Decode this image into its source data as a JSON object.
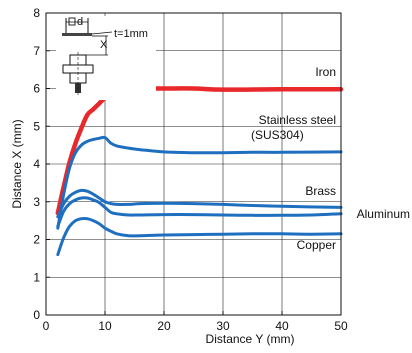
{
  "chart_data": {
    "type": "line",
    "xlabel": "Distance Y (mm)",
    "ylabel": "Distance X (mm)",
    "xlim": [
      0,
      50
    ],
    "ylim": [
      0,
      8
    ],
    "x_ticks": [
      0,
      10,
      20,
      30,
      40,
      50
    ],
    "y_ticks": [
      0,
      1,
      2,
      3,
      4,
      5,
      6,
      7,
      8
    ],
    "grid": true,
    "inset_labels": {
      "d": "d",
      "x": "X",
      "t": "t=1mm"
    },
    "series": [
      {
        "name": "Iron",
        "label_lines": [
          "Iron"
        ],
        "color": "#e8282b",
        "x": [
          2,
          3,
          4,
          5,
          6,
          7,
          8,
          9,
          10,
          12,
          14,
          16,
          20,
          25,
          30,
          40,
          50
        ],
        "y": [
          2.7,
          3.4,
          4.05,
          4.55,
          4.95,
          5.3,
          5.45,
          5.6,
          5.75,
          5.9,
          6.0,
          6.0,
          6.0,
          6.0,
          5.97,
          5.98,
          5.98
        ]
      },
      {
        "name": "Stainless steel (SUS304)",
        "label_lines": [
          "Stainless steel",
          "(SUS304)"
        ],
        "color": "#1f6fc0",
        "x": [
          2,
          3,
          4,
          5,
          6,
          7,
          8,
          9,
          10,
          11,
          12,
          14,
          16,
          20,
          25,
          30,
          35,
          40,
          50
        ],
        "y": [
          2.3,
          3.2,
          3.9,
          4.3,
          4.5,
          4.6,
          4.65,
          4.68,
          4.7,
          4.55,
          4.48,
          4.42,
          4.38,
          4.32,
          4.3,
          4.3,
          4.31,
          4.31,
          4.32
        ]
      },
      {
        "name": "Brass",
        "label_lines": [
          "Brass"
        ],
        "color": "#1f6fc0",
        "x": [
          2,
          3,
          4,
          5,
          6,
          7,
          8,
          9,
          10,
          11,
          12,
          14,
          16,
          20,
          25,
          30,
          35,
          40,
          50
        ],
        "y": [
          2.6,
          2.95,
          3.15,
          3.25,
          3.3,
          3.28,
          3.2,
          3.1,
          3.0,
          2.95,
          2.93,
          2.93,
          2.95,
          2.96,
          2.95,
          2.93,
          2.9,
          2.88,
          2.85
        ]
      },
      {
        "name": "Aluminum",
        "label_lines": [
          "Aluminum"
        ],
        "color": "#1f6fc0",
        "x": [
          2,
          3,
          4,
          5,
          6,
          7,
          8,
          9,
          10,
          11,
          12,
          14,
          16,
          20,
          25,
          30,
          35,
          40,
          45,
          50
        ],
        "y": [
          2.35,
          2.75,
          2.95,
          3.05,
          3.1,
          3.1,
          3.05,
          2.98,
          2.85,
          2.72,
          2.68,
          2.65,
          2.65,
          2.66,
          2.66,
          2.65,
          2.64,
          2.64,
          2.65,
          2.68
        ]
      },
      {
        "name": "Copper",
        "label_lines": [
          "Copper"
        ],
        "color": "#1f6fc0",
        "x": [
          2,
          3,
          4,
          5,
          6,
          7,
          8,
          9,
          10,
          11,
          12,
          14,
          16,
          20,
          25,
          30,
          35,
          40,
          45,
          50
        ],
        "y": [
          1.6,
          2.05,
          2.35,
          2.5,
          2.55,
          2.55,
          2.5,
          2.42,
          2.3,
          2.22,
          2.15,
          2.1,
          2.1,
          2.12,
          2.13,
          2.14,
          2.15,
          2.15,
          2.14,
          2.15
        ]
      }
    ]
  }
}
